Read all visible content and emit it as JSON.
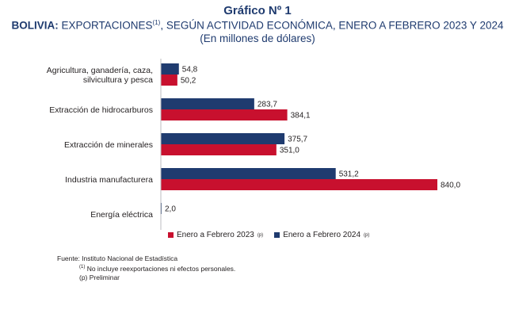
{
  "header": {
    "title": "Gráfico Nº 1",
    "subtitle_bold": "BOLIVIA:",
    "subtitle_rest": " EXPORTACIONES",
    "subtitle_note": "(1)",
    "subtitle_tail": ", SEGÚN ACTIVIDAD ECONÓMICA, ENERO A FEBRERO 2023 Y 2024",
    "units": "(En millones de dólares)"
  },
  "legend": {
    "series_2023": "Enero a Febrero 2023",
    "series_2024": "Enero a Febrero 2024",
    "mark": "(p)"
  },
  "footer": {
    "source": "Fuente: Instituto Nacional de Estadística",
    "note1_mark": "(1)",
    "note1": " No incluye reexportaciones ni efectos personales.",
    "note2": "(p) Preliminar"
  },
  "colors": {
    "series_2023": "#c8102e",
    "series_2024": "#1f3b6f"
  },
  "chart_data": {
    "type": "bar",
    "orientation": "horizontal",
    "categories": [
      [
        "Agricultura, ganadería, caza,",
        "silvicultura y pesca"
      ],
      [
        "Extracción de hidrocarburos"
      ],
      [
        "Extracción de minerales"
      ],
      [
        "Industria manufacturera"
      ],
      [
        "Energía eléctrica"
      ]
    ],
    "series": [
      {
        "name": "Enero a Febrero 2024",
        "values": [
          54.8,
          283.7,
          375.7,
          531.2,
          2.0
        ],
        "labels": [
          "54,8",
          "283,7",
          "375,7",
          "531,2",
          "2,0"
        ]
      },
      {
        "name": "Enero a Febrero 2023",
        "values": [
          50.2,
          384.1,
          351.0,
          840.0,
          null
        ],
        "labels": [
          "50,2",
          "384,1",
          "351,0",
          "840,0",
          ""
        ]
      }
    ],
    "xlim": [
      0,
      840
    ],
    "grid": false,
    "legend_position": "bottom"
  }
}
